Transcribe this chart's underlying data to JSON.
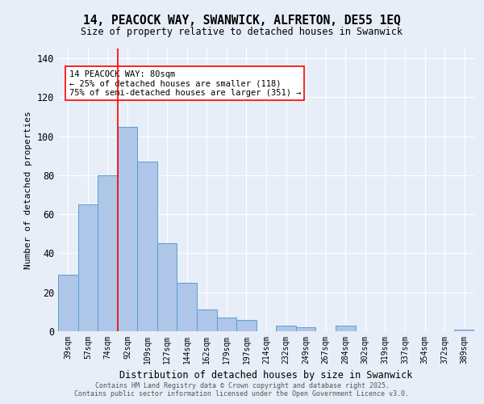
{
  "title_line1": "14, PEACOCK WAY, SWANWICK, ALFRETON, DE55 1EQ",
  "title_line2": "Size of property relative to detached houses in Swanwick",
  "xlabel": "Distribution of detached houses by size in Swanwick",
  "ylabel": "Number of detached properties",
  "bar_color": "#aec6e8",
  "bar_edge_color": "#5a9fd4",
  "background_color": "#e8eef8",
  "grid_color": "#ffffff",
  "categories": [
    "39sqm",
    "57sqm",
    "74sqm",
    "92sqm",
    "109sqm",
    "127sqm",
    "144sqm",
    "162sqm",
    "179sqm",
    "197sqm",
    "214sqm",
    "232sqm",
    "249sqm",
    "267sqm",
    "284sqm",
    "302sqm",
    "319sqm",
    "337sqm",
    "354sqm",
    "372sqm",
    "389sqm"
  ],
  "values": [
    29,
    65,
    80,
    105,
    87,
    45,
    25,
    11,
    7,
    6,
    0,
    3,
    2,
    0,
    3,
    0,
    0,
    0,
    0,
    0,
    1
  ],
  "red_line_x": 2.5,
  "annotation_text": "14 PEACOCK WAY: 80sqm\n← 25% of detached houses are smaller (118)\n75% of semi-detached houses are larger (351) →",
  "ylim": [
    0,
    145
  ],
  "yticks": [
    0,
    20,
    40,
    60,
    80,
    100,
    120,
    140
  ],
  "footer_line1": "Contains HM Land Registry data © Crown copyright and database right 2025.",
  "footer_line2": "Contains public sector information licensed under the Open Government Licence v3.0."
}
